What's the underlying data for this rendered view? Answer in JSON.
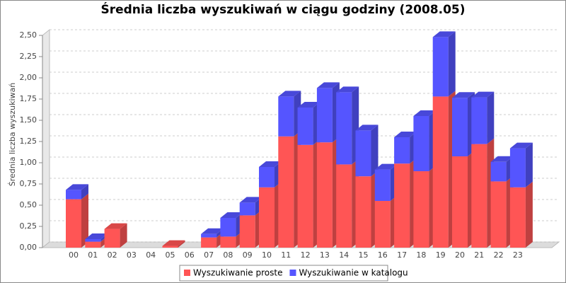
{
  "chart_data": {
    "type": "bar3d_stacked",
    "title": "Średnia liczba wyszukiwań w ciągu godziny (2008.05)",
    "y_label": "Średnia liczba wyszukiwań",
    "categories": [
      "00",
      "01",
      "02",
      "03",
      "04",
      "05",
      "06",
      "07",
      "08",
      "09",
      "10",
      "11",
      "12",
      "13",
      "14",
      "15",
      "16",
      "17",
      "18",
      "19",
      "20",
      "21",
      "22",
      "23"
    ],
    "series": [
      {
        "name": "Wyszukiwanie proste",
        "color": "#ff5555",
        "values": [
          0.57,
          0.07,
          0.22,
          0,
          0,
          0.02,
          0,
          0.12,
          0.13,
          0.38,
          0.71,
          1.31,
          1.21,
          1.24,
          0.98,
          0.84,
          0.55,
          0.99,
          0.9,
          1.78,
          1.075,
          1.22,
          0.78,
          0.71
        ]
      },
      {
        "name": "Wyszukiwanie w katalogu",
        "color": "#5555ff",
        "values": [
          0.11,
          0.03,
          0,
          0,
          0,
          0,
          0,
          0.04,
          0.22,
          0.15,
          0.24,
          0.47,
          0.44,
          0.64,
          0.85,
          0.54,
          0.37,
          0.31,
          0.65,
          0.7,
          0.69,
          0.55,
          0.23,
          0.46
        ]
      }
    ],
    "ylim": [
      0,
      2.5
    ],
    "yticks": [
      {
        "value": 0,
        "label": "0,00"
      },
      {
        "value": 0.25,
        "label": "0,25"
      },
      {
        "value": 0.5,
        "label": "0,50"
      },
      {
        "value": 0.75,
        "label": "0,75"
      },
      {
        "value": 1,
        "label": "1,00"
      },
      {
        "value": 1.25,
        "label": "1,25"
      },
      {
        "value": 1.5,
        "label": "1,50"
      },
      {
        "value": 1.75,
        "label": "1,75"
      },
      {
        "value": 2,
        "label": "2,00"
      },
      {
        "value": 2.25,
        "label": "2,25"
      },
      {
        "value": 2.5,
        "label": "2,50"
      }
    ],
    "grid": true
  }
}
